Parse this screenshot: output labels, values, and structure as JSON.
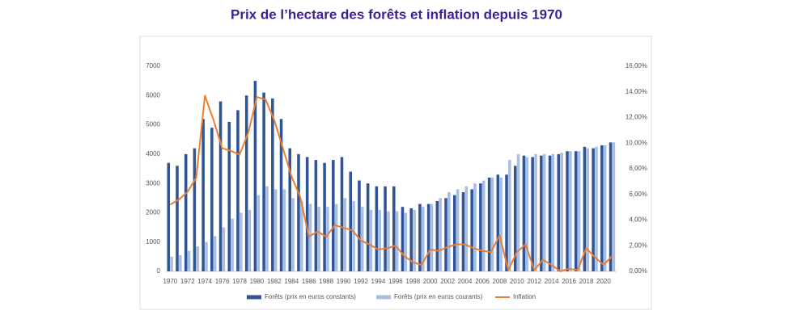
{
  "chart_data": {
    "type": "bar",
    "title": "Prix de l’hectare des forêts et inflation depuis 1970",
    "categories": [
      "1970",
      null,
      "1972",
      null,
      "1974",
      null,
      "1976",
      null,
      "1978",
      null,
      "1980",
      null,
      "1982",
      null,
      "1984",
      null,
      "1986",
      null,
      "1988",
      null,
      "1990",
      null,
      "1992",
      null,
      "1994",
      null,
      "1996",
      null,
      "1998",
      null,
      "2000",
      null,
      "2002",
      null,
      "2004",
      null,
      "2006",
      null,
      "2008",
      null,
      "2010",
      null,
      "2012",
      null,
      "2014",
      null,
      "2016",
      null,
      "2018",
      null,
      "2020",
      null
    ],
    "series": [
      {
        "name": "Forêts (prix en euros constants)",
        "type": "bar",
        "color": "#2f5596",
        "values": [
          3700,
          3600,
          4000,
          4200,
          5200,
          4900,
          5800,
          5100,
          5500,
          6000,
          6500,
          6100,
          5900,
          5200,
          4200,
          4000,
          3900,
          3800,
          3700,
          3800,
          3900,
          3400,
          3100,
          3000,
          2900,
          2900,
          2900,
          2200,
          2150,
          2300,
          2300,
          2400,
          2500,
          2600,
          2700,
          2800,
          3000,
          3200,
          3300,
          3300,
          3600,
          3950,
          3900,
          3950,
          3950,
          4000,
          4100,
          4100,
          4250,
          4200,
          4300,
          4400
        ]
      },
      {
        "name": "Forêts (prix en euros courants)",
        "type": "bar",
        "color": "#a8bee2",
        "values": [
          500,
          550,
          700,
          850,
          1000,
          1200,
          1500,
          1800,
          2000,
          2100,
          2600,
          2900,
          2800,
          2800,
          2500,
          2400,
          2300,
          2200,
          2200,
          2300,
          2500,
          2400,
          2200,
          2100,
          2100,
          2050,
          2050,
          2000,
          2100,
          2200,
          2300,
          2500,
          2700,
          2800,
          2900,
          3000,
          3100,
          3200,
          3200,
          3800,
          4000,
          3900,
          4000,
          4000,
          4000,
          4050,
          4100,
          4100,
          4200,
          4250,
          4300,
          4400
        ]
      },
      {
        "name": "Inflation",
        "type": "line",
        "axis": "y2",
        "color": "#ed7d31",
        "values": [
          5.2,
          5.6,
          6.2,
          7.3,
          13.7,
          11.8,
          9.6,
          9.4,
          9.1,
          10.8,
          13.6,
          13.4,
          11.8,
          9.6,
          7.4,
          5.8,
          2.7,
          3.1,
          2.7,
          3.6,
          3.4,
          3.2,
          2.4,
          2.1,
          1.7,
          1.8,
          2.0,
          1.2,
          0.7,
          0.5,
          1.7,
          1.6,
          1.9,
          2.1,
          2.1,
          1.8,
          1.6,
          1.5,
          2.8,
          0.1,
          1.5,
          2.1,
          0.1,
          0.9,
          0.5,
          0.0,
          0.2,
          0.1,
          1.8,
          1.1,
          0.5,
          1.2
        ]
      }
    ],
    "ylim": [
      0,
      7000
    ],
    "yticks": [
      0,
      1000,
      2000,
      3000,
      4000,
      5000,
      6000,
      7000
    ],
    "y2lim": [
      0,
      16
    ],
    "y2ticks": [
      {
        "value": 0,
        "label": "0,00%"
      },
      {
        "value": 2,
        "label": "2,00%"
      },
      {
        "value": 4,
        "label": "4,00%"
      },
      {
        "value": 6,
        "label": "6,00%"
      },
      {
        "value": 8,
        "label": "8,00%"
      },
      {
        "value": 10,
        "label": "10,00%"
      },
      {
        "value": 12,
        "label": "12,00%"
      },
      {
        "value": 14,
        "label": "14,00%"
      },
      {
        "value": 16,
        "label": "16,00%"
      }
    ],
    "legend": "bottom"
  }
}
